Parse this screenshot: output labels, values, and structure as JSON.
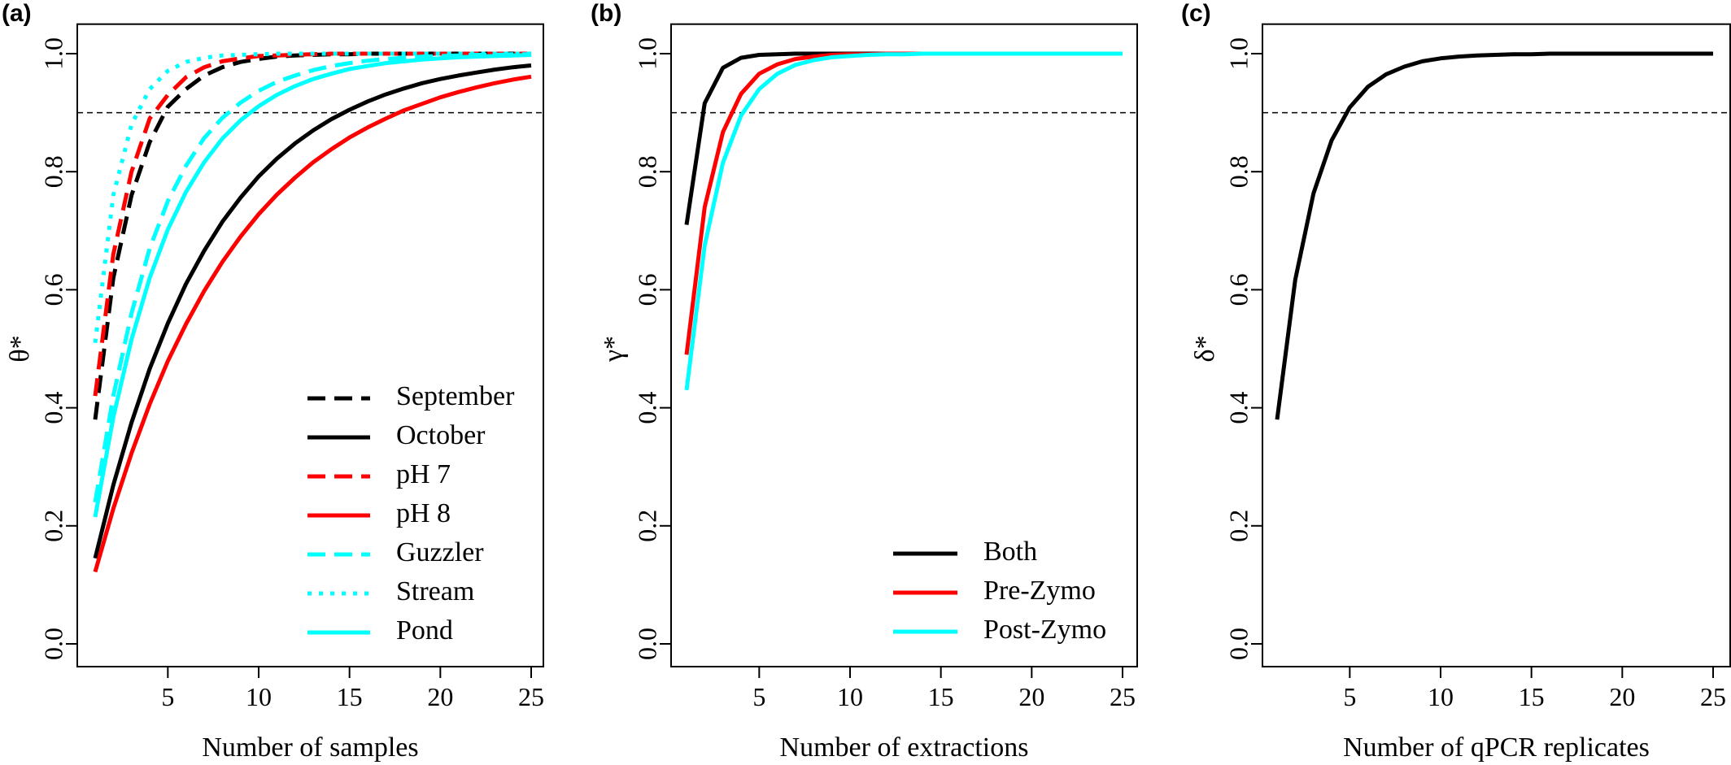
{
  "chart_data": [
    {
      "panel": "(a)",
      "type": "line",
      "xlabel": "Number of samples",
      "ylabel": "θ*",
      "xlim": [
        1,
        25
      ],
      "ylim": [
        0.0,
        1.0
      ],
      "x_ticks": [
        5,
        10,
        15,
        20,
        25
      ],
      "y_ticks": [
        0.0,
        0.2,
        0.4,
        0.6,
        0.8,
        1.0
      ],
      "reference_line": 0.9,
      "grid": false,
      "legend_position": "bottom-right",
      "x": [
        1,
        2,
        3,
        4,
        5,
        6,
        7,
        8,
        9,
        10,
        11,
        12,
        13,
        14,
        15,
        16,
        17,
        18,
        19,
        20,
        21,
        22,
        23,
        24,
        25
      ],
      "series": [
        {
          "name": "September",
          "color": "#000000",
          "dash": "dashed",
          "values": [
            0.38,
            0.62,
            0.76,
            0.85,
            0.91,
            0.94,
            0.963,
            0.977,
            0.986,
            0.991,
            0.995,
            0.997,
            0.998,
            0.999,
            0.999,
            1.0,
            1.0,
            1.0,
            1.0,
            1.0,
            1.0,
            1.0,
            1.0,
            1.0,
            1.0
          ]
        },
        {
          "name": "October",
          "color": "#000000",
          "dash": "solid",
          "values": [
            0.145,
            0.269,
            0.375,
            0.466,
            0.543,
            0.61,
            0.666,
            0.715,
            0.756,
            0.792,
            0.822,
            0.848,
            0.87,
            0.889,
            0.905,
            0.919,
            0.931,
            0.941,
            0.95,
            0.957,
            0.963,
            0.968,
            0.973,
            0.977,
            0.98
          ]
        },
        {
          "name": "pH 7",
          "color": "#ff0000",
          "dash": "dashed",
          "values": [
            0.42,
            0.66,
            0.8,
            0.89,
            0.93,
            0.96,
            0.977,
            0.987,
            0.992,
            0.996,
            0.997,
            0.998,
            0.999,
            1.0,
            1.0,
            1.0,
            1.0,
            1.0,
            1.0,
            1.0,
            1.0,
            1.0,
            1.0,
            1.0,
            1.0
          ]
        },
        {
          "name": "pH 8",
          "color": "#ff0000",
          "dash": "solid",
          "values": [
            0.122,
            0.229,
            0.323,
            0.406,
            0.479,
            0.542,
            0.598,
            0.647,
            0.69,
            0.728,
            0.761,
            0.79,
            0.816,
            0.838,
            0.858,
            0.875,
            0.89,
            0.904,
            0.915,
            0.926,
            0.935,
            0.943,
            0.95,
            0.956,
            0.961
          ]
        },
        {
          "name": "Guzzler",
          "color": "#00ffff",
          "dash": "dashed",
          "values": [
            0.24,
            0.42,
            0.56,
            0.67,
            0.75,
            0.81,
            0.857,
            0.891,
            0.917,
            0.937,
            0.952,
            0.963,
            0.972,
            0.979,
            0.984,
            0.988,
            0.991,
            0.993,
            0.995,
            0.996,
            0.997,
            0.998,
            0.998,
            0.999,
            0.999
          ]
        },
        {
          "name": "Stream",
          "color": "#00ffff",
          "dash": "dotted",
          "values": [
            0.51,
            0.76,
            0.88,
            0.94,
            0.971,
            0.986,
            0.993,
            0.997,
            0.998,
            0.999,
            1.0,
            1.0,
            1.0,
            1.0,
            1.0,
            1.0,
            1.0,
            1.0,
            1.0,
            1.0,
            1.0,
            1.0,
            1.0,
            1.0,
            1.0
          ]
        },
        {
          "name": "Pond",
          "color": "#00ffff",
          "dash": "solid",
          "values": [
            0.215,
            0.384,
            0.516,
            0.62,
            0.702,
            0.766,
            0.816,
            0.856,
            0.887,
            0.911,
            0.93,
            0.945,
            0.957,
            0.966,
            0.974,
            0.979,
            0.984,
            0.987,
            0.99,
            0.992,
            0.994,
            0.995,
            0.996,
            0.997,
            0.998
          ]
        }
      ]
    },
    {
      "panel": "(b)",
      "type": "line",
      "xlabel": "Number of extractions",
      "ylabel": "γ*",
      "xlim": [
        1,
        25
      ],
      "ylim": [
        0.0,
        1.0
      ],
      "x_ticks": [
        5,
        10,
        15,
        20,
        25
      ],
      "y_ticks": [
        0.0,
        0.2,
        0.4,
        0.6,
        0.8,
        1.0
      ],
      "reference_line": 0.9,
      "grid": false,
      "legend_position": "bottom-right",
      "x": [
        1,
        2,
        3,
        4,
        5,
        6,
        7,
        8,
        9,
        10,
        11,
        12,
        13,
        14,
        15,
        16,
        17,
        18,
        19,
        20,
        21,
        22,
        23,
        24,
        25
      ],
      "series": [
        {
          "name": "Both",
          "color": "#000000",
          "dash": "solid",
          "values": [
            0.71,
            0.916,
            0.976,
            0.993,
            0.998,
            0.999,
            1.0,
            1.0,
            1.0,
            1.0,
            1.0,
            1.0,
            1.0,
            1.0,
            1.0,
            1.0,
            1.0,
            1.0,
            1.0,
            1.0,
            1.0,
            1.0,
            1.0,
            1.0,
            1.0
          ]
        },
        {
          "name": "Pre-Zymo",
          "color": "#ff0000",
          "dash": "solid",
          "values": [
            0.49,
            0.74,
            0.867,
            0.932,
            0.966,
            0.982,
            0.991,
            0.995,
            0.998,
            0.999,
            0.999,
            1.0,
            1.0,
            1.0,
            1.0,
            1.0,
            1.0,
            1.0,
            1.0,
            1.0,
            1.0,
            1.0,
            1.0,
            1.0,
            1.0
          ]
        },
        {
          "name": "Post-Zymo",
          "color": "#00ffff",
          "dash": "solid",
          "values": [
            0.43,
            0.675,
            0.815,
            0.895,
            0.94,
            0.966,
            0.981,
            0.989,
            0.994,
            0.996,
            0.998,
            0.999,
            0.999,
            1.0,
            1.0,
            1.0,
            1.0,
            1.0,
            1.0,
            1.0,
            1.0,
            1.0,
            1.0,
            1.0,
            1.0
          ]
        }
      ]
    },
    {
      "panel": "(c)",
      "type": "line",
      "xlabel": "Number of qPCR replicates",
      "ylabel": "δ*",
      "xlim": [
        1,
        25
      ],
      "ylim": [
        0.0,
        1.0
      ],
      "x_ticks": [
        5,
        10,
        15,
        20,
        25
      ],
      "y_ticks": [
        0.0,
        0.2,
        0.4,
        0.6,
        0.8,
        1.0
      ],
      "reference_line": 0.9,
      "grid": false,
      "legend_position": "none",
      "x": [
        1,
        2,
        3,
        4,
        5,
        6,
        7,
        8,
        9,
        10,
        11,
        12,
        13,
        14,
        15,
        16,
        17,
        18,
        19,
        20,
        21,
        22,
        23,
        24,
        25
      ],
      "series": [
        {
          "color": "#000000",
          "dash": "solid",
          "values": [
            0.38,
            0.617,
            0.763,
            0.853,
            0.909,
            0.944,
            0.965,
            0.978,
            0.987,
            0.992,
            0.995,
            0.997,
            0.998,
            0.999,
            0.999,
            1.0,
            1.0,
            1.0,
            1.0,
            1.0,
            1.0,
            1.0,
            1.0,
            1.0,
            1.0
          ]
        }
      ]
    }
  ]
}
